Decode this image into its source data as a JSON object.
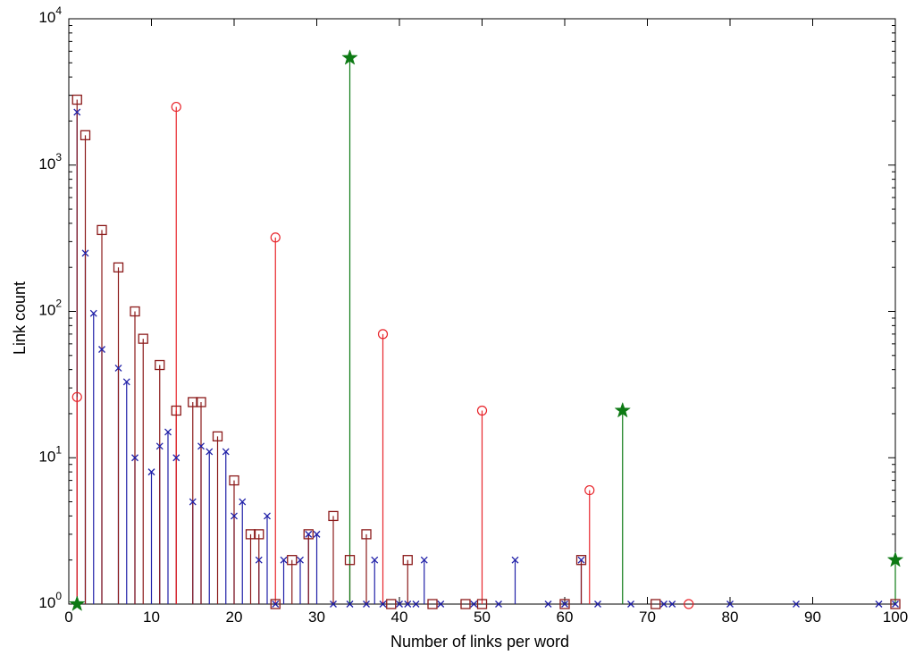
{
  "chart_data": {
    "type": "stem",
    "xlabel": "Number of links per word",
    "ylabel": "Link count",
    "xlim": [
      0,
      100
    ],
    "ylim": [
      1,
      10000
    ],
    "yscale": "log",
    "grid": false,
    "x_ticks": [
      "0",
      "10",
      "20",
      "30",
      "40",
      "50",
      "60",
      "70",
      "80",
      "90",
      "100"
    ],
    "y_ticks": [
      {
        "value": 1,
        "base": "10",
        "exp": "0"
      },
      {
        "value": 10,
        "base": "10",
        "exp": "1"
      },
      {
        "value": 100,
        "base": "10",
        "exp": "2"
      },
      {
        "value": 1000,
        "base": "10",
        "exp": "3"
      },
      {
        "value": 10000,
        "base": "10",
        "exp": "4"
      }
    ],
    "series": [
      {
        "marker": "x",
        "color": "#2020a8",
        "points": [
          [
            1,
            2300
          ],
          [
            2,
            250
          ],
          [
            3,
            97
          ],
          [
            4,
            55
          ],
          [
            6,
            41
          ],
          [
            7,
            33
          ],
          [
            8,
            10
          ],
          [
            10,
            8
          ],
          [
            11,
            12
          ],
          [
            12,
            15
          ],
          [
            13,
            10
          ],
          [
            15,
            5
          ],
          [
            16,
            12
          ],
          [
            17,
            11
          ],
          [
            19,
            11
          ],
          [
            20,
            4
          ],
          [
            21,
            5
          ],
          [
            23,
            2
          ],
          [
            24,
            4
          ],
          [
            25,
            1
          ],
          [
            26,
            2
          ],
          [
            28,
            2
          ],
          [
            29,
            3
          ],
          [
            30,
            3
          ],
          [
            32,
            1
          ],
          [
            34,
            1
          ],
          [
            36,
            1
          ],
          [
            37,
            2
          ],
          [
            38,
            1
          ],
          [
            40,
            1
          ],
          [
            41,
            1
          ],
          [
            42,
            1
          ],
          [
            43,
            2
          ],
          [
            45,
            1
          ],
          [
            49,
            1
          ],
          [
            52,
            1
          ],
          [
            54,
            2
          ],
          [
            58,
            1
          ],
          [
            60,
            1
          ],
          [
            62,
            2
          ],
          [
            64,
            1
          ],
          [
            68,
            1
          ],
          [
            72,
            1
          ],
          [
            73,
            1
          ],
          [
            80,
            1
          ],
          [
            88,
            1
          ],
          [
            98,
            1
          ],
          [
            100,
            1
          ]
        ]
      },
      {
        "marker": "square",
        "color": "#8b1a1a",
        "points": [
          [
            1,
            2800
          ],
          [
            2,
            1600
          ],
          [
            4,
            360
          ],
          [
            6,
            200
          ],
          [
            8,
            100
          ],
          [
            9,
            65
          ],
          [
            11,
            43
          ],
          [
            13,
            21
          ],
          [
            15,
            24
          ],
          [
            16,
            24
          ],
          [
            18,
            14
          ],
          [
            20,
            7
          ],
          [
            22,
            3
          ],
          [
            23,
            3
          ],
          [
            25,
            1
          ],
          [
            27,
            2
          ],
          [
            29,
            3
          ],
          [
            32,
            4
          ],
          [
            34,
            2
          ],
          [
            36,
            3
          ],
          [
            39,
            1
          ],
          [
            41,
            2
          ],
          [
            44,
            1
          ],
          [
            48,
            1
          ],
          [
            50,
            1
          ],
          [
            60,
            1
          ],
          [
            62,
            2
          ],
          [
            71,
            1
          ],
          [
            100,
            1
          ]
        ]
      },
      {
        "marker": "circle",
        "color": "#e8252b",
        "points": [
          [
            1,
            26
          ],
          [
            13,
            2500
          ],
          [
            25,
            320
          ],
          [
            38,
            70
          ],
          [
            50,
            21
          ],
          [
            63,
            6
          ],
          [
            75,
            1
          ]
        ]
      },
      {
        "marker": "star",
        "color": "#0d7a14",
        "points": [
          [
            1,
            1
          ],
          [
            34,
            5400
          ],
          [
            67,
            21
          ],
          [
            100,
            2
          ]
        ]
      }
    ]
  }
}
